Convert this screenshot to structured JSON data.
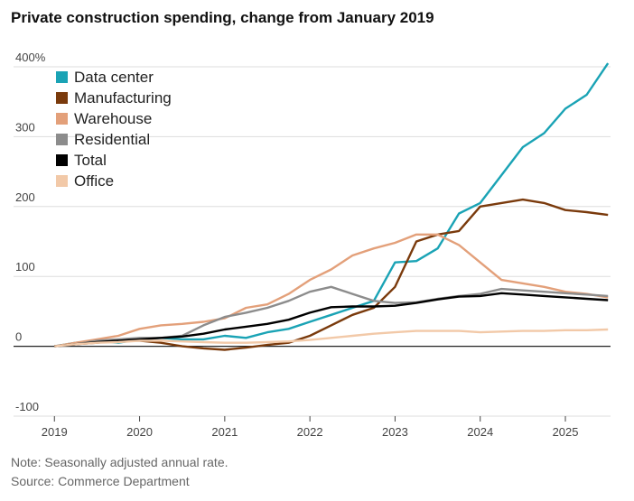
{
  "chart_data": {
    "type": "line",
    "title": "Private construction spending, change from January 2019",
    "note": "Note: Seasonally adjusted annual rate.",
    "source": "Source: Commerce Department",
    "x": [
      2019,
      2019.25,
      2019.5,
      2019.75,
      2020,
      2020.25,
      2020.5,
      2020.75,
      2021,
      2021.25,
      2021.5,
      2021.75,
      2022,
      2022.25,
      2022.5,
      2022.75,
      2023,
      2023.25,
      2023.5,
      2023.75,
      2024,
      2024.25,
      2024.5,
      2024.75,
      2025,
      2025.25,
      2025.5
    ],
    "series": [
      {
        "name": "Data center",
        "color": "#1aa3b5",
        "values": [
          0,
          5,
          8,
          5,
          10,
          12,
          10,
          10,
          15,
          12,
          20,
          25,
          35,
          45,
          55,
          65,
          120,
          122,
          140,
          190,
          205,
          245,
          285,
          305,
          340,
          360,
          405
        ]
      },
      {
        "name": "Manufacturing",
        "color": "#7a3a0c",
        "values": [
          0,
          3,
          5,
          8,
          8,
          5,
          0,
          -3,
          -5,
          -2,
          2,
          5,
          15,
          30,
          45,
          55,
          85,
          150,
          160,
          165,
          200,
          205,
          210,
          205,
          195,
          192,
          188
        ]
      },
      {
        "name": "Warehouse",
        "color": "#e3a07a",
        "values": [
          0,
          5,
          10,
          15,
          25,
          30,
          32,
          35,
          40,
          55,
          60,
          75,
          95,
          110,
          130,
          140,
          148,
          160,
          160,
          145,
          120,
          95,
          90,
          85,
          78,
          75,
          70
        ]
      },
      {
        "name": "Residential",
        "color": "#8c8c8c",
        "values": [
          0,
          3,
          8,
          10,
          12,
          12,
          15,
          30,
          42,
          48,
          55,
          65,
          78,
          85,
          75,
          65,
          62,
          63,
          68,
          72,
          75,
          82,
          80,
          78,
          76,
          74,
          72
        ]
      },
      {
        "name": "Total",
        "color": "#000000",
        "values": [
          0,
          3,
          6,
          8,
          10,
          12,
          14,
          18,
          24,
          28,
          32,
          38,
          48,
          56,
          57,
          57,
          58,
          62,
          67,
          71,
          72,
          76,
          74,
          72,
          70,
          68,
          66
        ]
      },
      {
        "name": "Office",
        "color": "#f2c9a8",
        "values": [
          0,
          3,
          5,
          6,
          8,
          8,
          7,
          6,
          5,
          5,
          6,
          7,
          9,
          12,
          15,
          18,
          20,
          22,
          22,
          22,
          20,
          21,
          22,
          22,
          23,
          23,
          24
        ]
      }
    ],
    "xlim": [
      2018.52,
      2025.53
    ],
    "xticks": [
      2019,
      2020,
      2021,
      2022,
      2023,
      2024,
      2025
    ],
    "ylim": [
      -100,
      400
    ],
    "yticks": [
      -100,
      0,
      100,
      200,
      300,
      {
        "value": 400,
        "label": "400%"
      }
    ],
    "grid": true,
    "legend": "top-left"
  }
}
